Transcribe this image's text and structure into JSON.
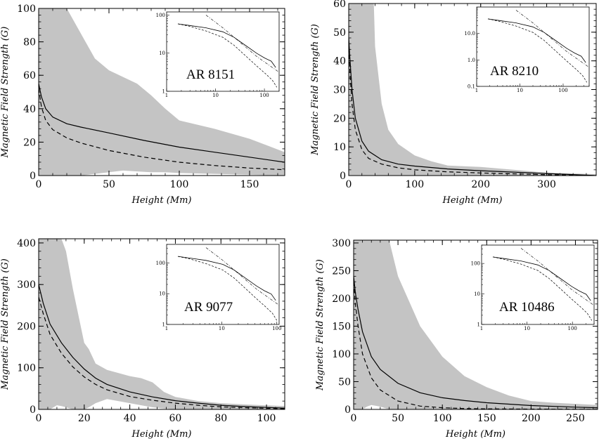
{
  "chart_data": [
    {
      "type": "line",
      "title": "",
      "xlabel": "Height (Mm)",
      "ylabel": "Magnetic Field Strength (G)",
      "xlim": [
        0,
        175
      ],
      "ylim": [
        0,
        100
      ],
      "xticks": [
        0,
        50,
        100,
        150
      ],
      "yticks": [
        0,
        20,
        40,
        60,
        80,
        100
      ],
      "series": [
        {
          "style": "solid",
          "x": [
            0,
            2,
            5,
            10,
            20,
            30,
            50,
            75,
            100,
            125,
            150,
            175
          ],
          "y": [
            55,
            47,
            40,
            35,
            31,
            29,
            25.5,
            21,
            17,
            14,
            11,
            8
          ]
        },
        {
          "style": "dashed",
          "x": [
            0,
            2,
            5,
            10,
            20,
            30,
            50,
            75,
            100,
            125,
            150,
            175
          ],
          "y": [
            52,
            41,
            33,
            27.5,
            22.5,
            19.5,
            15,
            11,
            8,
            6,
            4.5,
            3.5
          ]
        }
      ],
      "band": {
        "x": [
          0,
          10,
          20,
          30,
          40,
          50,
          60,
          70,
          80,
          90,
          100,
          125,
          150,
          175
        ],
        "lower": [
          0,
          0,
          0,
          0,
          1,
          2,
          3,
          2.5,
          2,
          2,
          1.5,
          1,
          0.5,
          0
        ],
        "upper": [
          100,
          100,
          100,
          85,
          70,
          63,
          59,
          55,
          48,
          40,
          33,
          28,
          22,
          14
        ]
      },
      "inset": {
        "label": "AR 8151",
        "xscale": "log",
        "yscale": "log",
        "xlim": [
          1,
          200
        ],
        "ylim": [
          1,
          120
        ],
        "xticks": [
          "1",
          "10",
          "100"
        ],
        "yticks": [
          "1",
          "10",
          "100"
        ]
      }
    },
    {
      "type": "line",
      "title": "",
      "xlabel": "Height (Mm)",
      "ylabel": "Magnetic Field Strength (G)",
      "xlim": [
        0,
        375
      ],
      "ylim": [
        0,
        60
      ],
      "xticks": [
        0,
        100,
        200,
        300
      ],
      "yticks": [
        0,
        10,
        20,
        30,
        40,
        50,
        60
      ],
      "series": [
        {
          "style": "solid",
          "x": [
            0,
            2,
            5,
            10,
            20,
            30,
            50,
            75,
            100,
            150,
            200,
            300,
            375
          ],
          "y": [
            48,
            40,
            30,
            20,
            12,
            8.5,
            5.5,
            4,
            3.3,
            2.3,
            1.7,
            0.7,
            0
          ]
        },
        {
          "style": "dashed",
          "x": [
            0,
            2,
            5,
            10,
            20,
            30,
            50,
            75,
            100,
            150,
            200,
            300,
            375
          ],
          "y": [
            47,
            35,
            25,
            16,
            9,
            6,
            4,
            2.7,
            2,
            1.3,
            0.9,
            0.3,
            0
          ]
        }
      ],
      "band": {
        "x": [
          0,
          10,
          20,
          30,
          38,
          40,
          50,
          60,
          75,
          100,
          125,
          150,
          200,
          250,
          300,
          375
        ],
        "lower": [
          0,
          0,
          0,
          0,
          0,
          0,
          0,
          0,
          0,
          0,
          0,
          0,
          0,
          0,
          0,
          0
        ],
        "upper": [
          60,
          60,
          60,
          60,
          60,
          45,
          25,
          16,
          11,
          7,
          5,
          3.5,
          3,
          2,
          1,
          0.5
        ]
      },
      "inset": {
        "label": "AR 8210",
        "xscale": "log",
        "yscale": "log",
        "xlim": [
          1,
          400
        ],
        "ylim": [
          0.1,
          100
        ],
        "xticks": [
          "1",
          "10",
          "100"
        ],
        "yticks": [
          "0.1",
          "1.0",
          "10.0"
        ]
      }
    },
    {
      "type": "line",
      "title": "",
      "xlabel": "Height (Mm)",
      "ylabel": "Magnetic Field Strength (G)",
      "xlim": [
        0,
        108
      ],
      "ylim": [
        0,
        410
      ],
      "xticks": [
        0,
        20,
        40,
        60,
        80,
        100
      ],
      "yticks": [
        0,
        100,
        200,
        300,
        400
      ],
      "series": [
        {
          "style": "solid",
          "x": [
            0,
            2,
            5,
            10,
            15,
            20,
            25,
            30,
            40,
            50,
            60,
            70,
            80,
            90,
            108
          ],
          "y": [
            300,
            255,
            205,
            160,
            125,
            97,
            75,
            60,
            42,
            30,
            21,
            15,
            10,
            7,
            3
          ]
        },
        {
          "style": "dashed",
          "x": [
            0,
            2,
            5,
            10,
            15,
            20,
            25,
            30,
            40,
            50,
            60,
            70,
            80,
            90,
            108
          ],
          "y": [
            270,
            230,
            180,
            135,
            102,
            78,
            60,
            47,
            31,
            22,
            15,
            10,
            6,
            4,
            1.5
          ]
        }
      ],
      "band": {
        "x": [
          0,
          5,
          8,
          10,
          12,
          15,
          20,
          22,
          25,
          30,
          40,
          45,
          50,
          55,
          60,
          70,
          80,
          90,
          108
        ],
        "lower": [
          0,
          0,
          10,
          8,
          5,
          0,
          0,
          5,
          15,
          25,
          15,
          10,
          5,
          2,
          0,
          0,
          0,
          0,
          0
        ],
        "upper": [
          410,
          410,
          410,
          410,
          380,
          290,
          160,
          145,
          110,
          95,
          80,
          75,
          65,
          42,
          30,
          20,
          15,
          12,
          8
        ]
      },
      "inset": {
        "label": "AR 9077",
        "xscale": "log",
        "yscale": "log",
        "xlim": [
          1,
          110
        ],
        "ylim": [
          1,
          400
        ],
        "xticks": [
          "1",
          "10",
          "100"
        ],
        "yticks": [
          "1",
          "10",
          "100"
        ]
      }
    },
    {
      "type": "line",
      "title": "",
      "xlabel": "Height (Mm)",
      "ylabel": "Magnetic Field Strength (G)",
      "xlim": [
        0,
        275
      ],
      "ylim": [
        0,
        305
      ],
      "xticks": [
        0,
        50,
        100,
        150,
        200,
        250
      ],
      "yticks": [
        0,
        50,
        100,
        150,
        200,
        250,
        300
      ],
      "series": [
        {
          "style": "solid",
          "x": [
            0,
            2,
            5,
            10,
            20,
            30,
            50,
            75,
            100,
            125,
            150,
            200,
            250,
            275
          ],
          "y": [
            240,
            210,
            180,
            140,
            95,
            72,
            47,
            30,
            21,
            16,
            12,
            7,
            4,
            3
          ]
        },
        {
          "style": "dashed",
          "x": [
            0,
            2,
            5,
            10,
            20,
            30,
            50,
            75,
            100,
            125,
            150,
            200,
            250,
            275
          ],
          "y": [
            230,
            190,
            150,
            100,
            57,
            35,
            15,
            6,
            3,
            1.5,
            1,
            0.5,
            0.3,
            0.2
          ]
        }
      ],
      "band": {
        "x": [
          0,
          5,
          10,
          15,
          20,
          30,
          40,
          50,
          75,
          100,
          125,
          150,
          175,
          200,
          225,
          250,
          275
        ],
        "lower": [
          0,
          0,
          0,
          5,
          8,
          5,
          0,
          0,
          0,
          0,
          0,
          0,
          0,
          0,
          0,
          0,
          0
        ],
        "upper": [
          305,
          305,
          305,
          305,
          305,
          305,
          305,
          240,
          150,
          95,
          60,
          40,
          25,
          15,
          12,
          10,
          8
        ]
      },
      "inset": {
        "label": "AR 10486",
        "xscale": "log",
        "yscale": "log",
        "xlim": [
          1,
          300
        ],
        "ylim": [
          1,
          400
        ],
        "xticks": [
          "1",
          "10",
          "100"
        ],
        "yticks": [
          "1",
          "10",
          "100"
        ]
      }
    }
  ]
}
